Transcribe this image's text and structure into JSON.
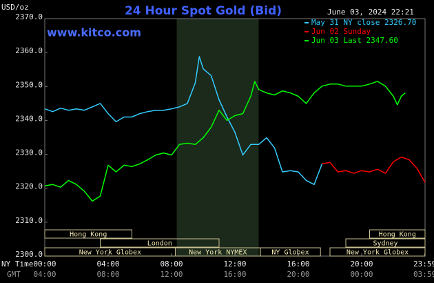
{
  "chart_data": {
    "type": "line",
    "title": "24 Hour Spot Gold (Bid)",
    "y_unit": "USD/oz",
    "watermark": "www.kitco.com",
    "timestamp": "June 03, 2024 22:21",
    "x_row_label": "NY Time",
    "x2_row_label": "GMT",
    "xlim": [
      0,
      24
    ],
    "xticks": [
      {
        "value": 0,
        "label": "00:00"
      },
      {
        "value": 4,
        "label": "04:00"
      },
      {
        "value": 8,
        "label": "08:00"
      },
      {
        "value": 12,
        "label": "12:00"
      },
      {
        "value": 16,
        "label": "16:00"
      },
      {
        "value": 20,
        "label": "20:00"
      },
      {
        "value": 23.98,
        "label": "23:59"
      }
    ],
    "x2_labels": [
      "04:00",
      "08:00",
      "12:00",
      "16:00",
      "20:00",
      "00:00",
      "03:59"
    ],
    "ylim": [
      2300,
      2370
    ],
    "yticks": [
      {
        "value": 2300,
        "label": "2300.0"
      },
      {
        "value": 2310,
        "label": "2310.0"
      },
      {
        "value": 2320,
        "label": "2320.0"
      },
      {
        "value": 2330,
        "label": "2330.0"
      },
      {
        "value": 2340,
        "label": "2340.0"
      },
      {
        "value": 2350,
        "label": "2350.0"
      },
      {
        "value": 2360,
        "label": "2360.0"
      },
      {
        "value": 2370,
        "label": "2370.0"
      }
    ],
    "grid": false,
    "shaded_range": [
      8.33,
      13.5
    ],
    "sessions": [
      {
        "label": "Hong Kong",
        "start": 0,
        "end": 5.5
      },
      {
        "label": "London",
        "start": 3.5,
        "end": 11
      },
      {
        "label": "New York Globex",
        "start": 0,
        "end": 8.25
      },
      {
        "label": "New York NYMEX",
        "start": 8.25,
        "end": 13.6
      },
      {
        "label": "NY Globex",
        "start": 13.6,
        "end": 17.4
      },
      {
        "label": "Hong Kong",
        "start": 20.5,
        "end": 24
      },
      {
        "label": "Sydney",
        "start": 19,
        "end": 24
      },
      {
        "label": "New York Globex",
        "start": 18,
        "end": 24
      }
    ],
    "series": [
      {
        "name": "May 31 NY close 2326.70",
        "color": "#33ccff",
        "x": [
          0,
          0.5,
          1,
          1.5,
          2,
          2.5,
          3,
          3.5,
          4,
          4.5,
          5,
          5.5,
          6,
          6.5,
          7,
          7.5,
          8,
          8.5,
          9,
          9.5,
          9.75,
          10,
          10.5,
          11,
          11.5,
          12,
          12.5,
          13,
          13.5,
          14,
          14.5,
          15,
          15.5,
          16,
          16.5,
          17,
          17.5
        ],
        "values": [
          2343.4,
          2342.6,
          2343.6,
          2343.0,
          2343.4,
          2343.0,
          2344.0,
          2345.0,
          2342.0,
          2339.6,
          2341.0,
          2341.0,
          2342.0,
          2342.6,
          2343.0,
          2343.0,
          2343.4,
          2344.0,
          2345.0,
          2351.1,
          2358.8,
          2355.2,
          2353.2,
          2346.1,
          2341.0,
          2336.5,
          2329.8,
          2332.9,
          2332.9,
          2334.9,
          2331.9,
          2324.8,
          2325.2,
          2324.8,
          2322.3,
          2321.1,
          2327.2
        ]
      },
      {
        "name": "Jun 02 Sunday",
        "color": "#ff0000",
        "x": [
          17.5,
          18,
          18.5,
          19,
          19.5,
          20,
          20.5,
          21,
          21.5,
          22,
          22.5,
          23,
          23.5,
          24
        ],
        "values": [
          2327.2,
          2327.6,
          2324.8,
          2325.2,
          2324.4,
          2325.2,
          2324.8,
          2325.6,
          2324.4,
          2327.8,
          2329.2,
          2328.4,
          2325.8,
          2321.7
        ]
      },
      {
        "name": "Jun 03 Last 2347.60",
        "color": "#00ff00",
        "x": [
          0,
          0.5,
          1,
          1.5,
          2,
          2.5,
          3,
          3.5,
          4,
          4.5,
          5,
          5.5,
          6,
          6.5,
          7,
          7.5,
          8,
          8.5,
          9,
          9.5,
          10,
          10.5,
          11,
          11.5,
          12,
          12.5,
          13,
          13.25,
          13.5,
          14,
          14.5,
          15,
          15.5,
          16,
          16.5,
          17,
          17.5,
          18,
          18.5,
          19,
          19.5,
          20,
          20.5,
          21,
          21.5,
          22,
          22.25,
          22.5,
          22.75
        ],
        "values": [
          2320.7,
          2321.1,
          2320.3,
          2322.3,
          2321.1,
          2319.1,
          2316.2,
          2317.7,
          2326.8,
          2324.8,
          2326.8,
          2326.4,
          2327.2,
          2328.4,
          2329.8,
          2330.4,
          2329.8,
          2332.9,
          2333.3,
          2332.9,
          2334.9,
          2338.0,
          2343.0,
          2340.0,
          2341.4,
          2342.0,
          2347.1,
          2351.5,
          2349.1,
          2348.1,
          2347.5,
          2348.7,
          2348.1,
          2347.1,
          2345.0,
          2348.1,
          2350.1,
          2350.7,
          2350.7,
          2350.1,
          2350.1,
          2350.1,
          2350.7,
          2351.5,
          2350.1,
          2347.1,
          2344.6,
          2347.1,
          2348.1
        ]
      }
    ]
  }
}
